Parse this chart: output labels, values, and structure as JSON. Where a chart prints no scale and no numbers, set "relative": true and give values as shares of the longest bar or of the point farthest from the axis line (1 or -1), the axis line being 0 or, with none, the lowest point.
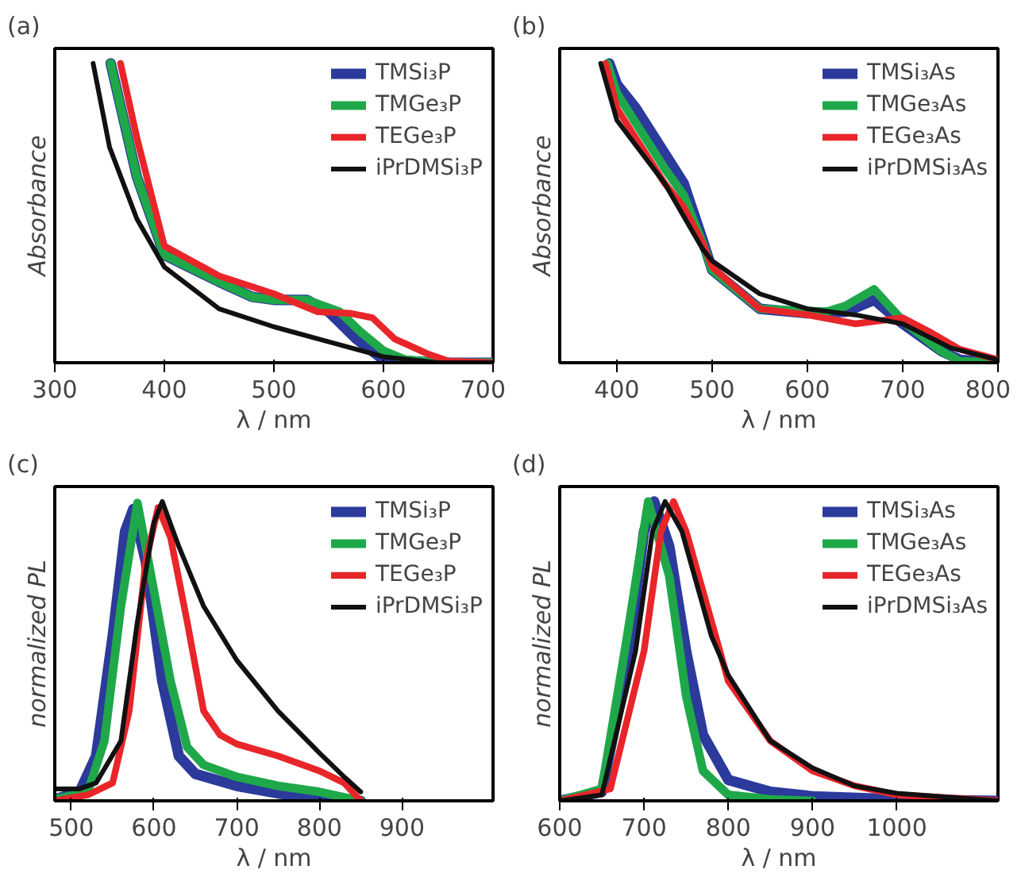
{
  "chart_data": [
    {
      "type": "line",
      "annotations": [
        "(a)"
      ],
      "xlabel": "λ / nm",
      "ylabel": "Absorbance",
      "relative": true,
      "xlim": [
        300,
        700
      ],
      "xticks": [
        300,
        400,
        500,
        600,
        700
      ],
      "legend": "top right",
      "grid": false,
      "series": [
        {
          "name": "TMSi₃P",
          "color": "#2b3a9b",
          "x": [
            351,
            375,
            400,
            450,
            480,
            500,
            530,
            550,
            575,
            600,
            650,
            700
          ],
          "values": [
            1,
            0.62,
            0.36,
            0.27,
            0.22,
            0.21,
            0.21,
            0.17,
            0.08,
            0.01,
            0,
            0
          ]
        },
        {
          "name": "TMGe₃P",
          "color": "#1fa84a",
          "x": [
            351,
            375,
            400,
            450,
            480,
            500,
            530,
            560,
            580,
            600,
            620,
            650,
            700
          ],
          "values": [
            1,
            0.62,
            0.36,
            0.27,
            0.22,
            0.21,
            0.21,
            0.17,
            0.1,
            0.04,
            0.01,
            0,
            0
          ]
        },
        {
          "name": "TEGe₃P",
          "color": "#e8262a",
          "x": [
            360,
            375,
            400,
            450,
            500,
            540,
            570,
            590,
            610,
            640,
            660,
            700
          ],
          "values": [
            1,
            0.75,
            0.39,
            0.29,
            0.23,
            0.17,
            0.165,
            0.15,
            0.08,
            0.03,
            0.005,
            0
          ]
        },
        {
          "name": "iPrDMSi₃P",
          "color": "#111111",
          "x": [
            335,
            350,
            375,
            400,
            450,
            500,
            550,
            600,
            650,
            700
          ],
          "values": [
            1,
            0.72,
            0.48,
            0.32,
            0.18,
            0.12,
            0.07,
            0.02,
            0,
            0
          ]
        }
      ]
    },
    {
      "type": "line",
      "annotations": [
        "(b)"
      ],
      "xlabel": "λ / nm",
      "ylabel": "Absorbance",
      "relative": true,
      "xlim": [
        340,
        800
      ],
      "xticks": [
        400,
        500,
        600,
        700,
        800
      ],
      "legend": "top right",
      "grid": false,
      "series": [
        {
          "name": "TMSi₃As",
          "color": "#2b3a9b",
          "x": [
            392,
            400,
            420,
            450,
            470,
            490,
            500,
            550,
            600,
            640,
            670,
            700,
            740,
            760,
            800
          ],
          "values": [
            1,
            0.93,
            0.85,
            0.7,
            0.6,
            0.41,
            0.31,
            0.18,
            0.165,
            0.17,
            0.21,
            0.13,
            0.04,
            0.01,
            0
          ]
        },
        {
          "name": "TMGe₃As",
          "color": "#1fa84a",
          "x": [
            390,
            400,
            450,
            470,
            490,
            500,
            550,
            620,
            640,
            670,
            700,
            740,
            760,
            800
          ],
          "values": [
            1,
            0.9,
            0.65,
            0.56,
            0.4,
            0.31,
            0.18,
            0.17,
            0.19,
            0.245,
            0.14,
            0.04,
            0.005,
            0
          ]
        },
        {
          "name": "TEGe₃As",
          "color": "#e8262a",
          "x": [
            388,
            400,
            450,
            470,
            490,
            500,
            550,
            600,
            650,
            700,
            730,
            760,
            800
          ],
          "values": [
            1,
            0.85,
            0.6,
            0.52,
            0.4,
            0.32,
            0.18,
            0.16,
            0.13,
            0.15,
            0.1,
            0.045,
            0.01
          ]
        },
        {
          "name": "iPrDMSi₃As",
          "color": "#111111",
          "x": [
            383,
            400,
            450,
            490,
            500,
            550,
            600,
            650,
            700,
            750,
            800
          ],
          "values": [
            1,
            0.81,
            0.6,
            0.38,
            0.34,
            0.23,
            0.18,
            0.16,
            0.13,
            0.05,
            0.01
          ]
        }
      ]
    },
    {
      "type": "line",
      "annotations": [
        "(c)"
      ],
      "xlabel": "λ / nm",
      "ylabel": "normalized PL",
      "relative": true,
      "xlim": [
        480,
        1010
      ],
      "xticks": [
        500,
        600,
        700,
        800,
        900
      ],
      "legend": "top right",
      "grid": false,
      "series": [
        {
          "name": "TMSi₃P",
          "color": "#2b3a9b",
          "x": [
            480,
            510,
            530,
            550,
            565,
            575,
            590,
            610,
            630,
            650,
            700,
            750,
            800,
            850
          ],
          "values": [
            0.005,
            0.03,
            0.15,
            0.55,
            0.9,
            0.975,
            0.8,
            0.4,
            0.15,
            0.09,
            0.05,
            0.025,
            0.01,
            0
          ]
        },
        {
          "name": "TMGe₃P",
          "color": "#1fa84a",
          "x": [
            480,
            520,
            540,
            560,
            580,
            600,
            620,
            640,
            660,
            700,
            750,
            800,
            850
          ],
          "values": [
            0.005,
            0.03,
            0.2,
            0.65,
            0.995,
            0.7,
            0.4,
            0.18,
            0.12,
            0.08,
            0.05,
            0.03,
            0
          ]
        },
        {
          "name": "TEGe₃P",
          "color": "#e8262a",
          "x": [
            480,
            520,
            550,
            570,
            590,
            605,
            620,
            640,
            660,
            680,
            700,
            750,
            800,
            830,
            850
          ],
          "values": [
            0,
            0.02,
            0.06,
            0.3,
            0.8,
            0.98,
            0.88,
            0.6,
            0.3,
            0.22,
            0.19,
            0.15,
            0.1,
            0.06,
            0
          ]
        },
        {
          "name": "iPrDMSi₃P",
          "color": "#111111",
          "x": [
            480,
            510,
            530,
            560,
            580,
            600,
            610,
            630,
            660,
            700,
            750,
            800,
            830,
            850
          ],
          "values": [
            0.04,
            0.04,
            0.06,
            0.2,
            0.6,
            0.93,
            1,
            0.85,
            0.65,
            0.47,
            0.3,
            0.16,
            0.08,
            0.03
          ]
        }
      ]
    },
    {
      "type": "line",
      "annotations": [
        "(d)"
      ],
      "xlabel": "λ / nm",
      "ylabel": "normalized PL",
      "relative": true,
      "xlim": [
        600,
        1120
      ],
      "xticks": [
        600,
        700,
        800,
        900,
        1000
      ],
      "legend": "top right",
      "grid": false,
      "series": [
        {
          "name": "TMSi₃As",
          "color": "#2b3a9b",
          "x": [
            600,
            650,
            680,
            700,
            712,
            730,
            750,
            770,
            800,
            850,
            900,
            1000,
            1120
          ],
          "values": [
            0,
            0.03,
            0.45,
            0.9,
            1,
            0.85,
            0.5,
            0.22,
            0.07,
            0.03,
            0.015,
            0.005,
            0
          ]
        },
        {
          "name": "TMGe₃As",
          "color": "#1fa84a",
          "x": [
            600,
            650,
            680,
            705,
            730,
            750,
            770,
            800,
            850,
            900
          ],
          "values": [
            0,
            0.04,
            0.55,
            1,
            0.75,
            0.35,
            0.1,
            0.02,
            0.005,
            0
          ]
        },
        {
          "name": "TEGe₃As",
          "color": "#e8262a",
          "x": [
            600,
            660,
            700,
            720,
            735,
            750,
            780,
            800,
            850,
            900,
            950,
            1000,
            1120
          ],
          "values": [
            0,
            0.04,
            0.5,
            0.9,
            1,
            0.9,
            0.6,
            0.4,
            0.2,
            0.1,
            0.05,
            0.02,
            0
          ]
        },
        {
          "name": "iPrDMSi₃As",
          "color": "#111111",
          "x": [
            600,
            650,
            690,
            710,
            725,
            745,
            780,
            800,
            850,
            900,
            950,
            1000,
            1120
          ],
          "values": [
            0,
            0.02,
            0.5,
            0.9,
            1,
            0.9,
            0.55,
            0.42,
            0.2,
            0.11,
            0.05,
            0.025,
            0
          ]
        }
      ]
    }
  ]
}
